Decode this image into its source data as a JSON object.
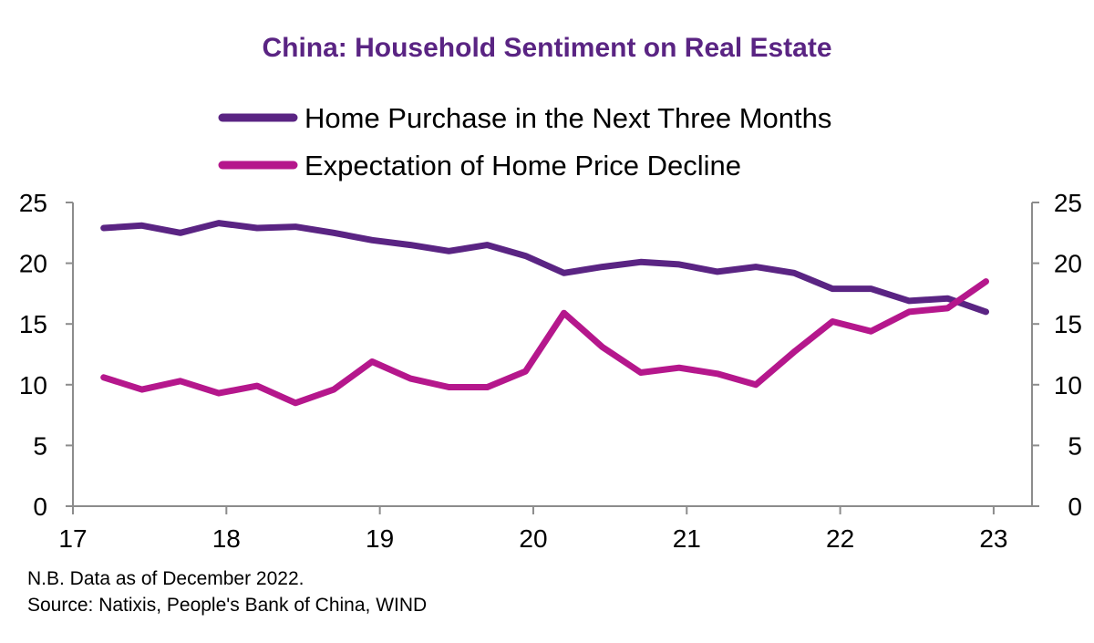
{
  "chart_data": {
    "type": "line",
    "title": "China: Household Sentiment on Real Estate",
    "xlabel": "",
    "ylabel": "",
    "x_ticks": [
      "17",
      "18",
      "19",
      "20",
      "21",
      "22",
      "23"
    ],
    "x_range": [
      17,
      23.25
    ],
    "ylim": [
      0,
      25
    ],
    "y_ticks": [
      0,
      5,
      10,
      15,
      20,
      25
    ],
    "y2_ticks": [
      0,
      5,
      10,
      15,
      20,
      25
    ],
    "grid": false,
    "legend_position": "top",
    "series": [
      {
        "name": "Home Purchase in the Next Three Months",
        "color": "#5a2483",
        "x": [
          17.2,
          17.45,
          17.7,
          17.95,
          18.2,
          18.45,
          18.7,
          18.95,
          19.2,
          19.45,
          19.7,
          19.95,
          20.2,
          20.45,
          20.7,
          20.95,
          21.2,
          21.45,
          21.7,
          21.95,
          22.2,
          22.45,
          22.7,
          22.95
        ],
        "values": [
          22.9,
          23.1,
          22.5,
          23.3,
          22.9,
          23.0,
          22.5,
          21.9,
          21.5,
          21.0,
          21.5,
          20.6,
          19.2,
          19.7,
          20.1,
          19.9,
          19.3,
          19.7,
          19.2,
          17.9,
          17.9,
          16.9,
          17.1,
          16.0
        ]
      },
      {
        "name": "Expectation of Home Price Decline",
        "color": "#b5178c",
        "x": [
          17.2,
          17.45,
          17.7,
          17.95,
          18.2,
          18.45,
          18.7,
          18.95,
          19.2,
          19.45,
          19.7,
          19.95,
          20.2,
          20.45,
          20.7,
          20.95,
          21.2,
          21.45,
          21.7,
          21.95,
          22.2,
          22.45,
          22.7,
          22.95
        ],
        "values": [
          10.6,
          9.6,
          10.3,
          9.3,
          9.9,
          8.5,
          9.6,
          11.9,
          10.5,
          9.8,
          9.8,
          11.1,
          15.9,
          13.1,
          11.0,
          11.4,
          10.9,
          10.0,
          12.7,
          15.2,
          14.4,
          16.0,
          16.3,
          18.5
        ]
      }
    ],
    "notes": [
      "N.B. Data as of December 2022.",
      "Source: Natixis, People's Bank of China, WIND"
    ]
  },
  "colors": {
    "title": "#5a2483",
    "axis": "#8c8c8c"
  }
}
